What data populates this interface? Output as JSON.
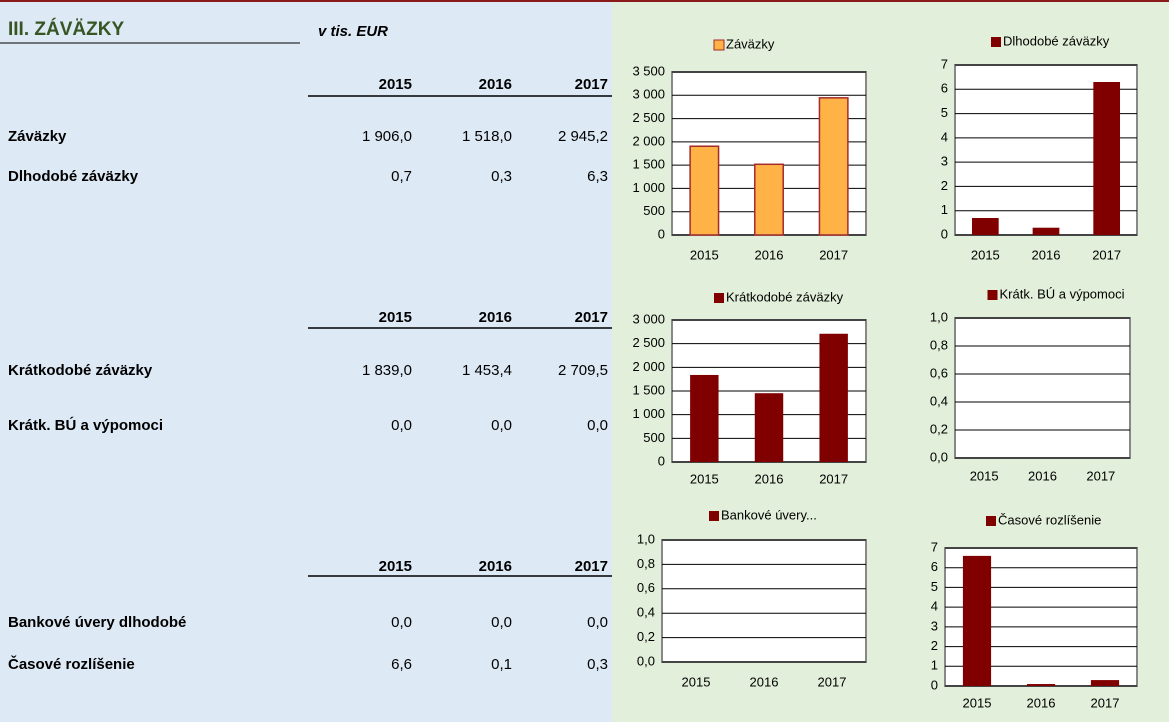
{
  "header": {
    "title": "III. ZÁVÄZKY",
    "unit": "v tis. EUR"
  },
  "tables": [
    {
      "years": [
        "2015",
        "2016",
        "2017"
      ],
      "rows": [
        {
          "label": "Záväzky",
          "values": [
            "1 906,0",
            "1 518,0",
            "2 945,2"
          ]
        },
        {
          "label": "Dlhodobé záväzky",
          "values": [
            "0,7",
            "0,3",
            "6,3"
          ]
        }
      ]
    },
    {
      "years": [
        "2015",
        "2016",
        "2017"
      ],
      "rows": [
        {
          "label": "Krátkodobé záväzky",
          "values": [
            "1 839,0",
            "1 453,4",
            "2 709,5"
          ]
        },
        {
          "label": "Krátk. BÚ a výpomoci",
          "values": [
            "0,0",
            "0,0",
            "0,0"
          ]
        }
      ]
    },
    {
      "years": [
        "2015",
        "2016",
        "2017"
      ],
      "rows": [
        {
          "label": "Bankové úvery dlhodobé",
          "values": [
            "0,0",
            "0,0",
            "0,0"
          ]
        },
        {
          "label": "Časové rozlíšenie",
          "values": [
            "6,6",
            "0,1",
            "0,3"
          ]
        }
      ]
    }
  ],
  "chart_data": [
    {
      "type": "bar",
      "categories": [
        "2015",
        "2016",
        "2017"
      ],
      "series": [
        {
          "name": "Záväzky",
          "color": "#ffb347",
          "edge_color": "#a52a2a",
          "values": [
            1906.0,
            1518.0,
            2945.2
          ]
        }
      ],
      "ylim": [
        0,
        3500
      ],
      "yticks": [
        0,
        500,
        {
          "value": 1000,
          "label": "1 000"
        },
        {
          "value": 1500,
          "label": "1 500"
        },
        {
          "value": 2000,
          "label": "2 000"
        },
        {
          "value": 2500,
          "label": "2 500"
        },
        {
          "value": 3000,
          "label": "3 000"
        },
        {
          "value": 3500,
          "label": "3 500"
        }
      ],
      "grid": true
    },
    {
      "type": "bar",
      "categories": [
        "2015",
        "2016",
        "2017"
      ],
      "series": [
        {
          "name": "Dlhodobé záväzky",
          "color": "#800000",
          "values": [
            0.7,
            0.3,
            6.3
          ]
        }
      ],
      "ylim": [
        0,
        7
      ],
      "yticks": [
        0,
        1,
        2,
        3,
        4,
        5,
        6,
        7
      ],
      "grid": true
    },
    {
      "type": "bar",
      "categories": [
        "2015",
        "2016",
        "2017"
      ],
      "series": [
        {
          "name": "Krátkodobé záväzky",
          "color": "#800000",
          "values": [
            1839.0,
            1453.4,
            2709.5
          ]
        }
      ],
      "ylim": [
        0,
        3000
      ],
      "yticks": [
        0,
        500,
        {
          "value": 1000,
          "label": "1 000"
        },
        {
          "value": 1500,
          "label": "1 500"
        },
        {
          "value": 2000,
          "label": "2 000"
        },
        {
          "value": 2500,
          "label": "2 500"
        },
        {
          "value": 3000,
          "label": "3 000"
        }
      ],
      "grid": true
    },
    {
      "type": "bar",
      "categories": [
        "2015",
        "2016",
        "2017"
      ],
      "series": [
        {
          "name": "Krátk. BÚ a výpomoci",
          "color": "#800000",
          "values": [
            0,
            0,
            0
          ]
        }
      ],
      "ylim": [
        0,
        1
      ],
      "yticks": [
        {
          "value": 0,
          "label": "0,0"
        },
        {
          "value": 0.2,
          "label": "0,2"
        },
        {
          "value": 0.4,
          "label": "0,4"
        },
        {
          "value": 0.6,
          "label": "0,6"
        },
        {
          "value": 0.8,
          "label": "0,8"
        },
        {
          "value": 1,
          "label": "1,0"
        }
      ],
      "grid": true
    },
    {
      "type": "bar",
      "categories": [
        "2015",
        "2016",
        "2017"
      ],
      "series": [
        {
          "name": "Bankové úvery...",
          "color": "#800000",
          "values": [
            0,
            0,
            0
          ]
        }
      ],
      "ylim": [
        0,
        1
      ],
      "yticks": [
        {
          "value": 0,
          "label": "0,0"
        },
        {
          "value": 0.2,
          "label": "0,2"
        },
        {
          "value": 0.4,
          "label": "0,4"
        },
        {
          "value": 0.6,
          "label": "0,6"
        },
        {
          "value": 0.8,
          "label": "0,8"
        },
        {
          "value": 1,
          "label": "1,0"
        }
      ],
      "grid": true
    },
    {
      "type": "bar",
      "categories": [
        "2015",
        "2016",
        "2017"
      ],
      "series": [
        {
          "name": "Časové rozlíšenie",
          "color": "#800000",
          "values": [
            6.6,
            0.1,
            0.3
          ]
        }
      ],
      "ylim": [
        0,
        7
      ],
      "yticks": [
        0,
        1,
        2,
        3,
        4,
        5,
        6,
        7
      ],
      "grid": true
    }
  ]
}
